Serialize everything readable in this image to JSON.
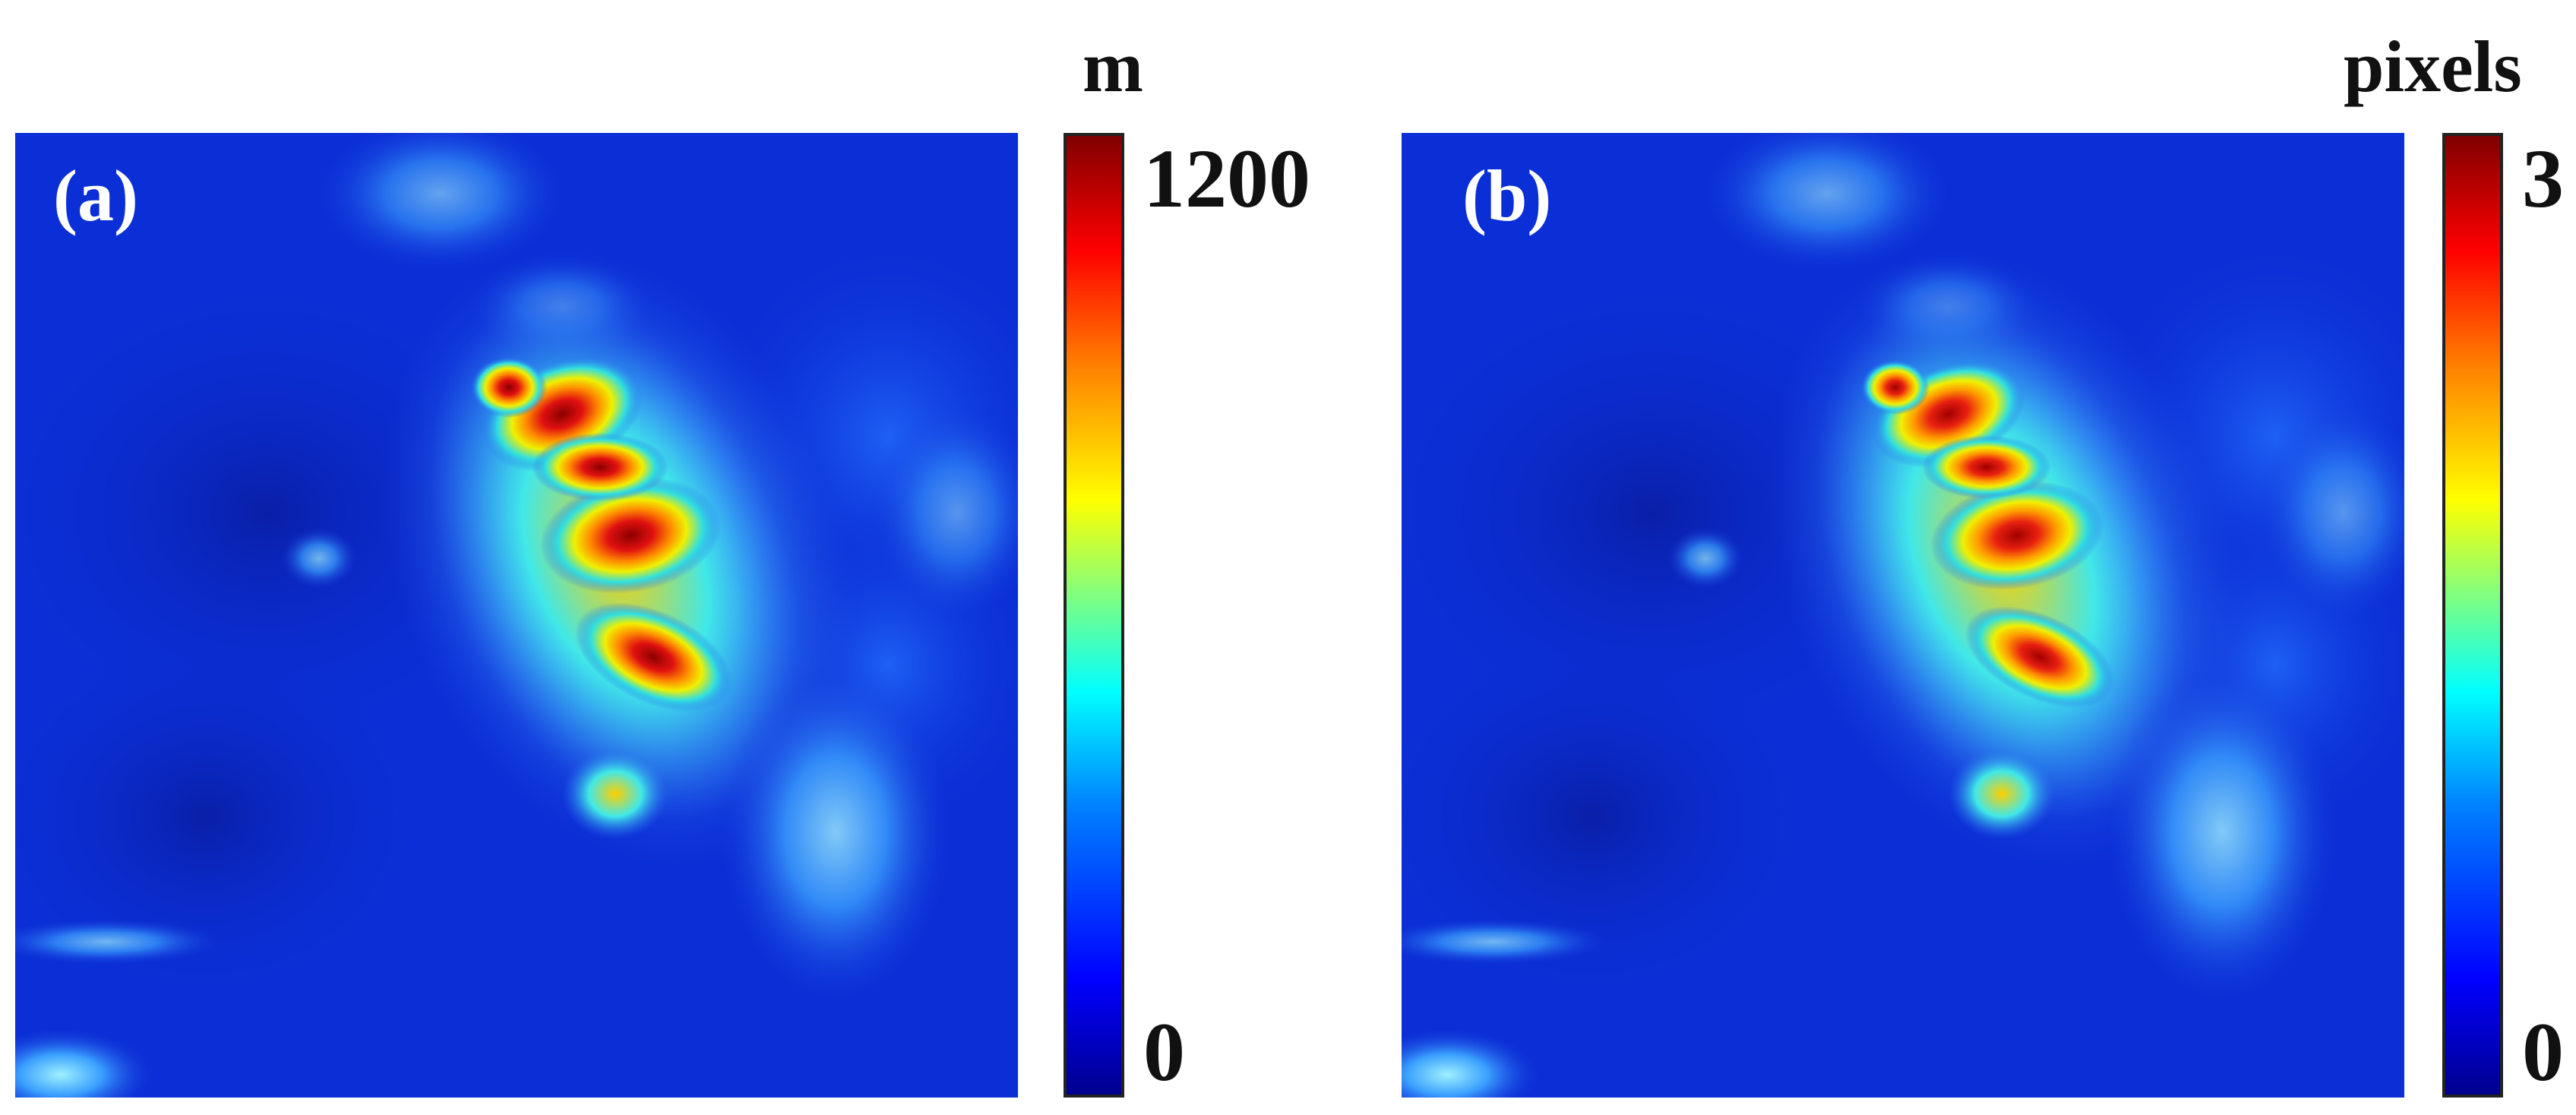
{
  "panels": [
    {
      "label": "(a)",
      "colorbar": {
        "unit": "m",
        "max_label": "1200",
        "min_label": "0"
      }
    },
    {
      "label": "(b)",
      "colorbar": {
        "unit": "pixels",
        "max_label": "3",
        "min_label": "0"
      }
    }
  ],
  "colormap": "jet"
}
